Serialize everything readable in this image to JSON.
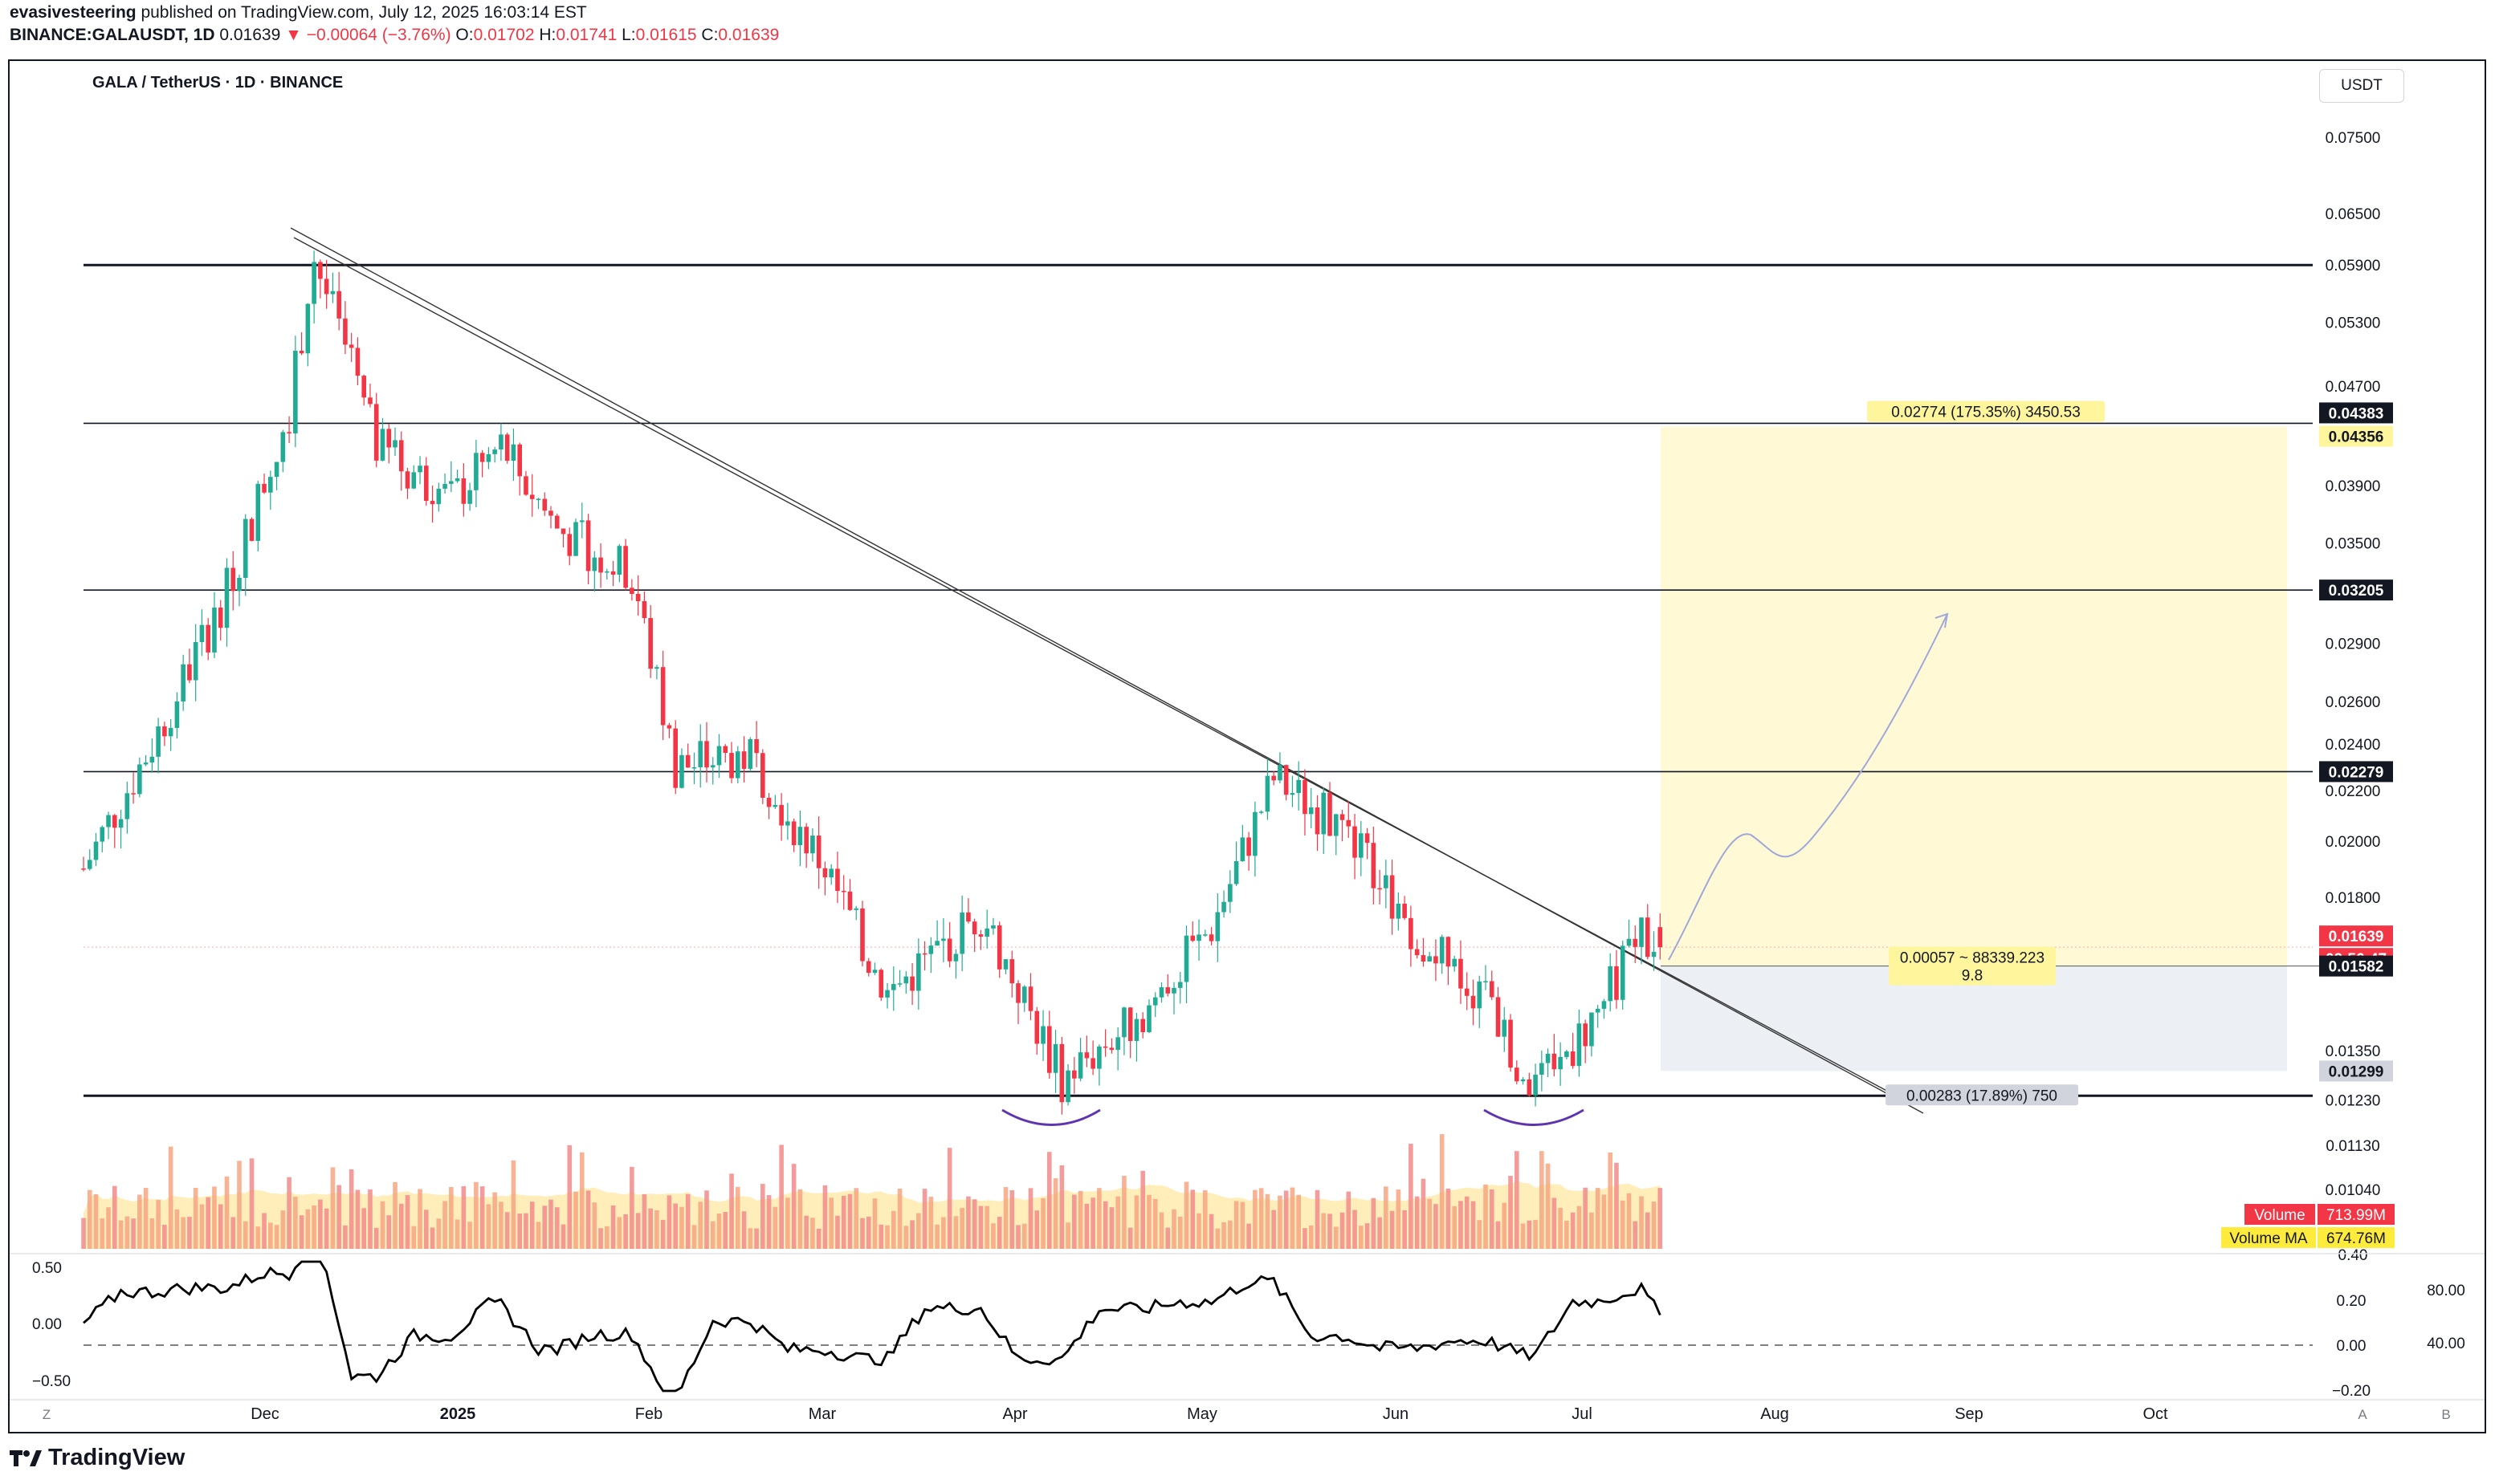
{
  "header": {
    "publisher": "evasivesteering",
    "published_text": "published on TradingView.com, July 12, 2025 16:03:14 EST",
    "symbol": "BINANCE:GALAUSDT, 1D",
    "last": "0.01639",
    "change": "−0.00064 (−3.76%)",
    "o_label": "O:",
    "o": "0.01702",
    "h_label": "H:",
    "h": "0.01741",
    "l_label": "L:",
    "l": "0.01615",
    "c_label": "C:",
    "c": "0.01639"
  },
  "chart_title": "GALA / TetherUS · 1D · BINANCE",
  "currency_button": "USDT",
  "brand": "TradingView",
  "colors": {
    "up": "#22ab94",
    "down": "#f23645",
    "volume_ma": "#ffe082",
    "target_zone": "#fff9d6",
    "stop_zone": "#eceff3",
    "oscillator": "#000000",
    "curve": "#5e35b1"
  },
  "chart_data": {
    "type": "candlestick",
    "scale": "log",
    "ylim": [
      0.0096,
      0.08
    ],
    "price_ticks": [
      "0.07500",
      "0.06500",
      "0.05900",
      "0.05300",
      "0.04700",
      "0.03900",
      "0.03500",
      "0.02900",
      "0.02600",
      "0.02400",
      "0.02200",
      "0.02000",
      "0.01800",
      "0.01350",
      "0.01230",
      "0.01130",
      "0.01040"
    ],
    "x_labels": [
      "Z",
      "Dec",
      "2025",
      "Feb",
      "Mar",
      "Apr",
      "May",
      "Jun",
      "Jul",
      "Aug",
      "Sep",
      "Oct",
      "A",
      "B"
    ],
    "key_points": [
      {
        "date": "2024-11-01",
        "close": 0.019
      },
      {
        "date": "2024-11-12",
        "close": 0.024
      },
      {
        "date": "2024-11-24",
        "close": 0.032
      },
      {
        "date": "2024-12-04",
        "close": 0.045
      },
      {
        "date": "2024-12-08",
        "close": 0.06
      },
      {
        "date": "2024-12-18",
        "close": 0.042
      },
      {
        "date": "2024-12-30",
        "close": 0.038
      },
      {
        "date": "2025-01-07",
        "close": 0.042
      },
      {
        "date": "2025-01-16",
        "close": 0.036
      },
      {
        "date": "2025-01-28",
        "close": 0.033
      },
      {
        "date": "2025-02-04",
        "close": 0.023
      },
      {
        "date": "2025-02-16",
        "close": 0.0235
      },
      {
        "date": "2025-02-28",
        "close": 0.019
      },
      {
        "date": "2025-03-10",
        "close": 0.015
      },
      {
        "date": "2025-03-25",
        "close": 0.0175
      },
      {
        "date": "2025-04-07",
        "close": 0.0128
      },
      {
        "date": "2025-04-20",
        "close": 0.0145
      },
      {
        "date": "2025-05-01",
        "close": 0.017
      },
      {
        "date": "2025-05-11",
        "close": 0.0225
      },
      {
        "date": "2025-05-22",
        "close": 0.0205
      },
      {
        "date": "2025-06-03",
        "close": 0.0168
      },
      {
        "date": "2025-06-14",
        "close": 0.0148
      },
      {
        "date": "2025-06-22",
        "close": 0.0125
      },
      {
        "date": "2025-07-02",
        "close": 0.0145
      },
      {
        "date": "2025-07-09",
        "close": 0.017
      },
      {
        "date": "2025-07-12",
        "close": 0.01639
      }
    ],
    "horizontal_levels": [
      {
        "price": 0.059,
        "thick": true
      },
      {
        "price": 0.04383
      },
      {
        "price": 0.03205
      },
      {
        "price": 0.02279
      },
      {
        "price": 0.0124,
        "thick": true
      }
    ],
    "price_tags": [
      {
        "text": "0.04383",
        "price": 0.04383,
        "style": "black"
      },
      {
        "text": "0.04356",
        "price": 0.04356,
        "style": "yellow"
      },
      {
        "text": "0.03205",
        "price": 0.03205,
        "style": "black"
      },
      {
        "text": "0.02279",
        "price": 0.02279,
        "style": "black"
      },
      {
        "text": "0.01639",
        "price": 0.01639,
        "style": "red"
      },
      {
        "text": "02:56:47",
        "price": 0.01639,
        "style": "red-sub"
      },
      {
        "text": "0.01582",
        "price": 0.01582,
        "style": "black"
      },
      {
        "text": "0.01299",
        "price": 0.01299,
        "style": "grey"
      }
    ],
    "position": {
      "target_label": "0.02774 (175.35%) 3450.53",
      "entry_label_1": "0.00057 ~ 88339.223",
      "entry_label_2": "9.8",
      "stop_label": "0.00283 (17.89%) 750",
      "entry": 0.01582,
      "target": 0.04356,
      "stop": 0.01299
    },
    "volume": {
      "label": "Volume",
      "value": "713.99M",
      "ma_label": "Volume MA",
      "ma_value": "674.76M",
      "axis_tick": "0.40"
    },
    "oscillator": {
      "left_ticks": [
        "0.50",
        "0.00",
        "−0.50"
      ],
      "right_ticks": [
        "0.20",
        "0.00",
        "−0.20"
      ],
      "far_right_ticks": [
        "80.00",
        "40.00"
      ]
    }
  }
}
